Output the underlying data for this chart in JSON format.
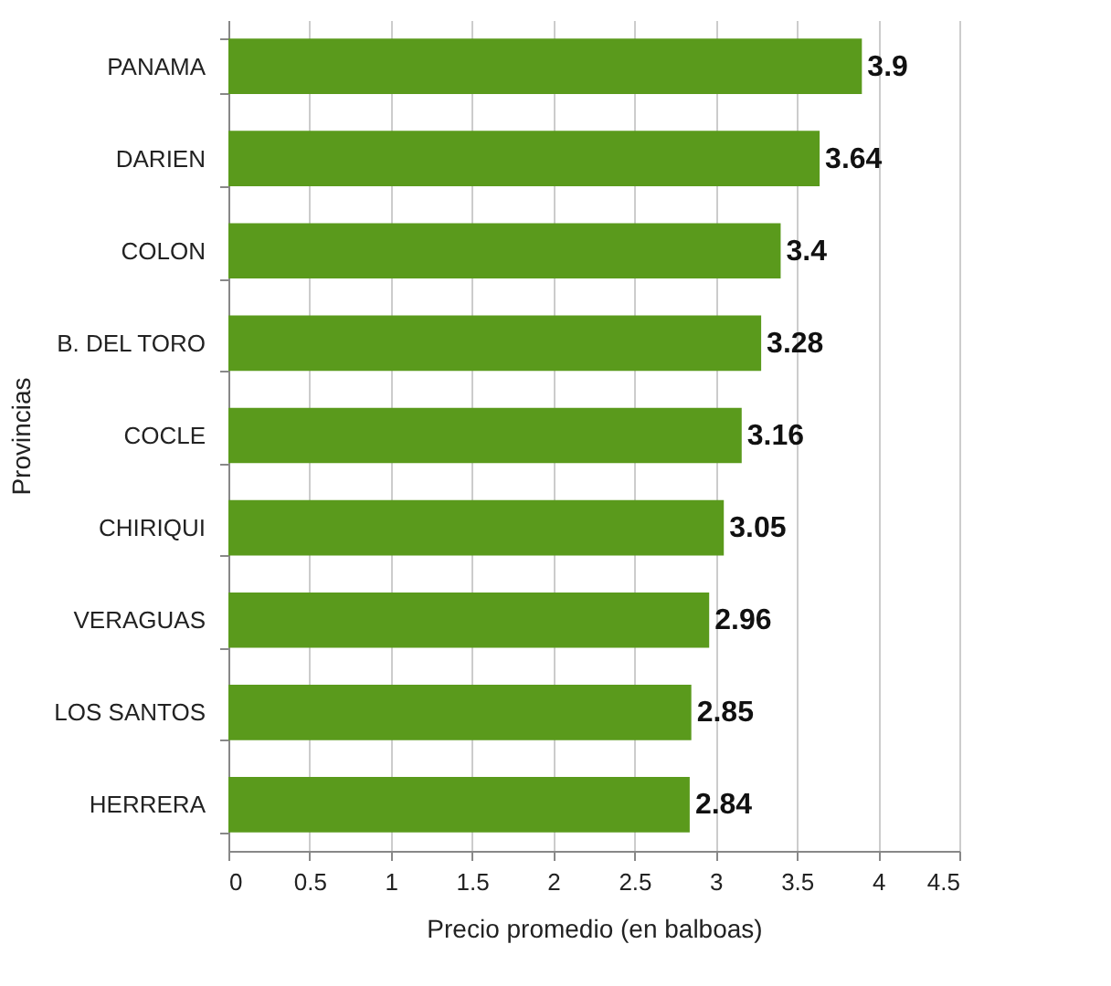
{
  "chart_data": {
    "type": "bar",
    "orientation": "horizontal",
    "xlabel": "Precio promedio (en balboas)",
    "ylabel": "Provincias",
    "categories": [
      "PANAMA",
      "DARIEN",
      "COLON",
      "B. DEL TORO",
      "COCLE",
      "CHIRIQUI",
      "VERAGUAS",
      "LOS SANTOS",
      "HERRERA"
    ],
    "values": [
      3.9,
      3.64,
      3.4,
      3.28,
      3.16,
      3.05,
      2.96,
      2.85,
      2.84
    ],
    "color": "#5a9a1c",
    "xlim": [
      0,
      4.5
    ],
    "xticks": [
      0,
      0.5,
      1,
      1.5,
      2,
      2.5,
      3,
      3.5,
      4,
      4.5
    ],
    "grid": "x",
    "data_labels": true
  }
}
